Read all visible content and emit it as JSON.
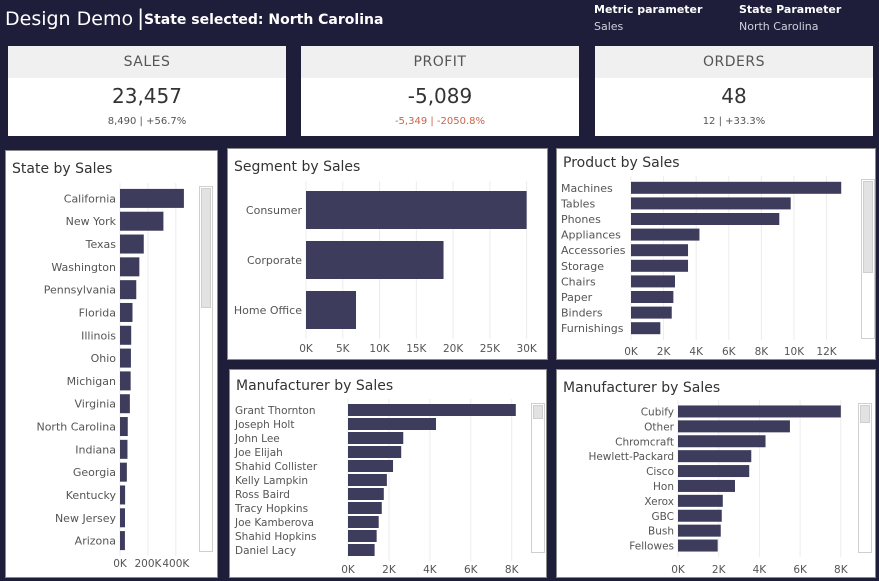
{
  "header": {
    "title": "Design Demo",
    "separator": "|",
    "subtitle": "State selected: North Carolina",
    "metric_param": {
      "label": "Metric parameter",
      "value": "Sales"
    },
    "state_param": {
      "label": "State Parameter",
      "value": "North Carolina"
    }
  },
  "kpis": {
    "sales": {
      "label": "SALES",
      "value": "23,457",
      "sub": "8,490 | +56.7%"
    },
    "profit": {
      "label": "PROFIT",
      "value": "-5,089",
      "sub": "-5,349 | -2050.8%"
    },
    "orders": {
      "label": "ORDERS",
      "value": "48",
      "sub": "12 | +33.3%"
    }
  },
  "colors": {
    "bar": "#3e3c5c",
    "background": "#1e1d3a",
    "negative": "#c8644a"
  },
  "chart_data": [
    {
      "id": "state",
      "type": "bar",
      "orientation": "horizontal",
      "title": "State by Sales",
      "categories": [
        "California",
        "New York",
        "Texas",
        "Washington",
        "Pennsylvania",
        "Florida",
        "Illinois",
        "Ohio",
        "Michigan",
        "Virginia",
        "North Carolina",
        "Indiana",
        "Georgia",
        "Kentucky",
        "New Jersey",
        "Arizona"
      ],
      "values": [
        457688,
        310876,
        170188,
        138641,
        116512,
        89474,
        80166,
        78258,
        76270,
        70637,
        55603,
        53555,
        49096,
        36592,
        35764,
        35282
      ],
      "ticks": [
        "0K",
        "200K",
        "400K"
      ],
      "tick_values": [
        0,
        200000,
        400000
      ],
      "xlim": [
        0,
        530000
      ]
    },
    {
      "id": "segment",
      "type": "bar",
      "orientation": "horizontal",
      "title": "Segment by Sales",
      "categories": [
        "Consumer",
        "Corporate",
        "Home Office"
      ],
      "values": [
        30000,
        18700,
        6800
      ],
      "ticks": [
        "0K",
        "5K",
        "10K",
        "15K",
        "20K",
        "25K",
        "30K"
      ],
      "tick_values": [
        0,
        5000,
        10000,
        15000,
        20000,
        25000,
        30000
      ],
      "xlim": [
        0,
        31000
      ]
    },
    {
      "id": "product",
      "type": "bar",
      "orientation": "horizontal",
      "title": "Product by Sales",
      "categories": [
        "Machines",
        "Tables",
        "Phones",
        "Appliances",
        "Accessories",
        "Storage",
        "Chairs",
        "Paper",
        "Binders",
        "Furnishings"
      ],
      "values": [
        12900,
        9800,
        9100,
        4200,
        3500,
        3500,
        2700,
        2600,
        2500,
        1800
      ],
      "ticks": [
        "0K",
        "2K",
        "4K",
        "6K",
        "8K",
        "10K",
        "12K"
      ],
      "tick_values": [
        0,
        2000,
        4000,
        6000,
        8000,
        10000,
        12000
      ],
      "xlim": [
        0,
        13500
      ]
    },
    {
      "id": "manuf1",
      "type": "bar",
      "orientation": "horizontal",
      "title": "Manufacturer by Sales",
      "categories": [
        "Grant Thornton",
        "Joseph Holt",
        "John Lee",
        "Joe Elijah",
        "Shahid Collister",
        "Kelly Lampkin",
        "Ross Baird",
        "Tracy Hopkins",
        "Joe Kamberova",
        "Shahid Hopkins",
        "Daniel Lacy"
      ],
      "values": [
        8200,
        4300,
        2700,
        2600,
        2200,
        1900,
        1750,
        1650,
        1500,
        1400,
        1300
      ],
      "ticks": [
        "0K",
        "2K",
        "4K",
        "6K",
        "8K"
      ],
      "tick_values": [
        0,
        2000,
        4000,
        6000,
        8000
      ],
      "xlim": [
        0,
        8600
      ]
    },
    {
      "id": "manuf2",
      "type": "bar",
      "orientation": "horizontal",
      "title": "Manufacturer by Sales",
      "categories": [
        "Cubify",
        "Other",
        "Chromcraft",
        "Hewlett-Packard",
        "Cisco",
        "Hon",
        "Xerox",
        "GBC",
        "Bush",
        "Fellowes"
      ],
      "values": [
        8000,
        5500,
        4300,
        3600,
        3500,
        2800,
        2200,
        2150,
        2100,
        1950
      ],
      "ticks": [
        "0K",
        "2K",
        "4K",
        "6K",
        "8K"
      ],
      "tick_values": [
        0,
        2000,
        4000,
        6000,
        8000
      ],
      "xlim": [
        0,
        8500
      ]
    }
  ]
}
